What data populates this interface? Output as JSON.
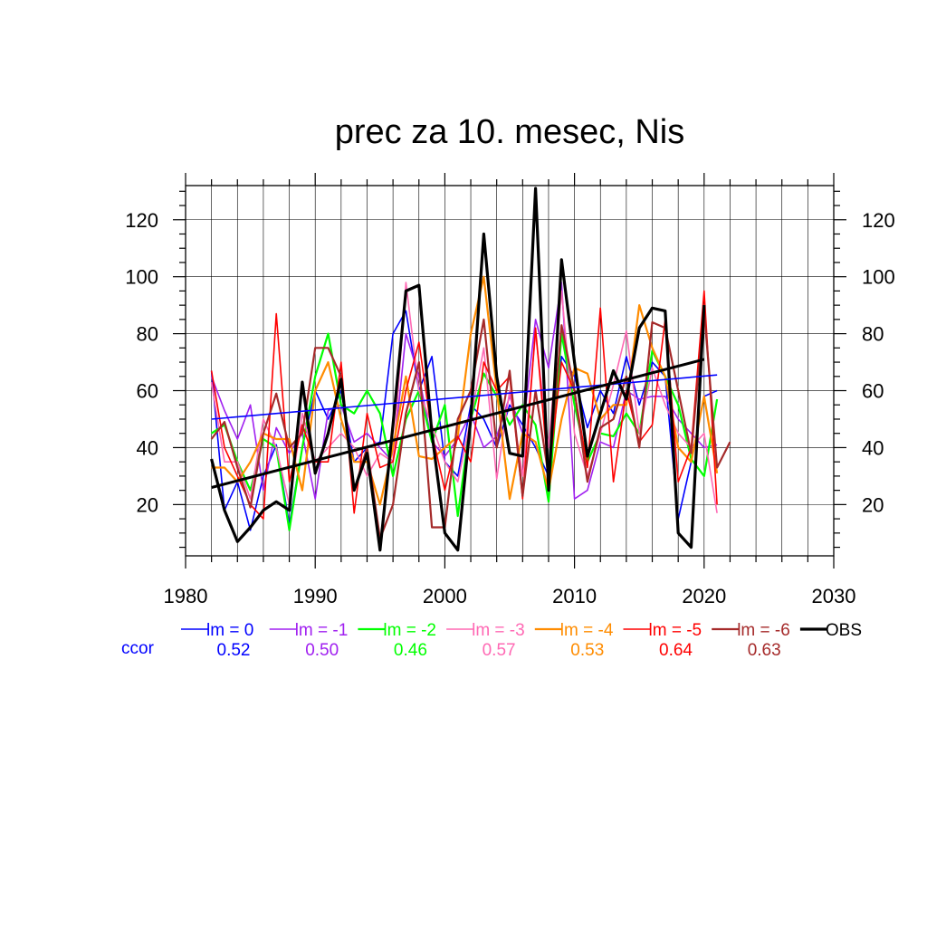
{
  "chart_data": {
    "type": "line",
    "title": "prec za 10. mesec, Nis",
    "xlabel": "",
    "ylabel": "",
    "xlim": [
      1980,
      2030
    ],
    "ylim": [
      2,
      132
    ],
    "x_ticks": [
      1980,
      1990,
      2000,
      2010,
      2020,
      2030
    ],
    "y_ticks": [
      20,
      40,
      60,
      80,
      100,
      120
    ],
    "grid": true,
    "legend_placement": "bottom",
    "ccor_label": "ccor",
    "series": [
      {
        "name": "lm = 0",
        "color": "#0000ff",
        "width": 1.6,
        "ccor": "0.52",
        "x": [
          1982,
          1983,
          1984,
          1985,
          1986,
          1987,
          1988,
          1989,
          1990,
          1991,
          1992,
          1993,
          1994,
          1995,
          1996,
          1997,
          1998,
          1999,
          2000,
          2001,
          2002,
          2003,
          2004,
          2005,
          2006,
          2007,
          2008,
          2009,
          2010,
          2011,
          2012,
          2013,
          2014,
          2015,
          2016,
          2017,
          2018,
          2019,
          2020,
          2021
        ],
        "values": [
          67,
          18,
          28,
          11,
          30,
          41,
          13,
          40,
          60,
          50,
          60,
          35,
          40,
          42,
          80,
          88,
          60,
          72,
          35,
          30,
          55,
          50,
          40,
          55,
          48,
          40,
          30,
          72,
          65,
          47,
          60,
          52,
          72,
          55,
          70,
          65,
          15,
          35,
          58,
          60
        ],
        "trend": [
          50,
          65.5
        ]
      },
      {
        "name": "lm = -1",
        "color": "#a020f0",
        "width": 1.6,
        "ccor": "0.50",
        "x": [
          1982,
          1983,
          1984,
          1985,
          1986,
          1987,
          1988,
          1989,
          1990,
          1991,
          1992,
          1993,
          1994,
          1995,
          1996,
          1997,
          1998,
          1999,
          2000,
          2001,
          2002,
          2003,
          2004,
          2005,
          2006,
          2007,
          2008,
          2009,
          2010,
          2011,
          2012,
          2013,
          2014,
          2015,
          2016,
          2017,
          2018,
          2019,
          2020,
          2021
        ],
        "values": [
          65,
          53,
          43,
          55,
          25,
          47,
          38,
          45,
          22,
          53,
          55,
          42,
          45,
          40,
          35,
          80,
          65,
          42,
          37,
          43,
          52,
          40,
          44,
          58,
          45,
          85,
          68,
          98,
          22,
          25,
          42,
          40,
          60,
          57,
          58,
          58,
          50,
          45,
          40,
          41
        ]
      },
      {
        "name": "lm = -2",
        "color": "#00ff00",
        "width": 2.2,
        "ccor": "0.46",
        "x": [
          1982,
          1983,
          1984,
          1985,
          1986,
          1987,
          1988,
          1989,
          1990,
          1991,
          1992,
          1993,
          1994,
          1995,
          1996,
          1997,
          1998,
          1999,
          2000,
          2001,
          2002,
          2003,
          2004,
          2005,
          2006,
          2007,
          2008,
          2009,
          2010,
          2011,
          2012,
          2013,
          2014,
          2015,
          2016,
          2017,
          2018,
          2019,
          2020,
          2021
        ],
        "values": [
          45,
          48,
          35,
          25,
          43,
          40,
          11,
          40,
          65,
          80,
          55,
          52,
          60,
          52,
          30,
          50,
          60,
          42,
          55,
          16,
          50,
          66,
          58,
          48,
          55,
          48,
          21,
          80,
          55,
          35,
          45,
          44,
          52,
          45,
          74,
          65,
          55,
          36,
          30,
          57
        ]
      },
      {
        "name": "lm = -3",
        "color": "#ff69b4",
        "width": 1.6,
        "ccor": "0.57",
        "x": [
          1982,
          1983,
          1984,
          1985,
          1986,
          1987,
          1988,
          1989,
          1990,
          1991,
          1992,
          1993,
          1994,
          1995,
          1996,
          1997,
          1998,
          1999,
          2000,
          2001,
          2002,
          2003,
          2004,
          2005,
          2006,
          2007,
          2008,
          2009,
          2010,
          2011,
          2012,
          2013,
          2014,
          2015,
          2016,
          2017,
          2018,
          2019,
          2020,
          2021
        ],
        "values": [
          63,
          35,
          35,
          22,
          50,
          40,
          20,
          52,
          35,
          40,
          45,
          40,
          30,
          38,
          35,
          98,
          60,
          48,
          35,
          28,
          50,
          75,
          29,
          60,
          30,
          80,
          40,
          95,
          45,
          30,
          45,
          62,
          81,
          45,
          68,
          55,
          45,
          40,
          45,
          17
        ]
      },
      {
        "name": "lm = -4",
        "color": "#ff8c00",
        "width": 2.2,
        "ccor": "0.53",
        "x": [
          1982,
          1983,
          1984,
          1985,
          1986,
          1987,
          1988,
          1989,
          1990,
          1991,
          1992,
          1993,
          1994,
          1995,
          1996,
          1997,
          1998,
          1999,
          2000,
          2001,
          2002,
          2003,
          2004,
          2005,
          2006,
          2007,
          2008,
          2009,
          2010,
          2011,
          2012,
          2013,
          2014,
          2015,
          2016,
          2017,
          2018,
          2019,
          2020,
          2021
        ],
        "values": [
          33,
          33,
          28,
          35,
          45,
          43,
          43,
          25,
          60,
          70,
          50,
          35,
          35,
          20,
          40,
          65,
          37,
          36,
          40,
          44,
          80,
          100,
          60,
          22,
          45,
          42,
          25,
          50,
          68,
          66,
          50,
          55,
          55,
          90,
          75,
          65,
          40,
          35,
          58,
          31
        ]
      },
      {
        "name": "lm = -5",
        "color": "#ff0000",
        "width": 1.6,
        "ccor": "0.64",
        "x": [
          1982,
          1983,
          1984,
          1985,
          1986,
          1987,
          1988,
          1989,
          1990,
          1991,
          1992,
          1993,
          1994,
          1995,
          1996,
          1997,
          1998,
          1999,
          2000,
          2001,
          2002,
          2003,
          2004,
          2005,
          2006,
          2007,
          2008,
          2009,
          2010,
          2011,
          2012,
          2013,
          2014,
          2015,
          2016,
          2017,
          2018,
          2019,
          2020,
          2021
        ],
        "values": [
          67,
          40,
          30,
          20,
          15,
          87,
          28,
          48,
          35,
          35,
          70,
          17,
          52,
          33,
          35,
          60,
          77,
          45,
          25,
          44,
          35,
          70,
          60,
          65,
          22,
          82,
          30,
          70,
          60,
          33,
          89,
          28,
          60,
          42,
          48,
          85,
          28,
          40,
          95,
          20
        ]
      },
      {
        "name": "lm = -6",
        "color": "#a52a2a",
        "width": 2.2,
        "ccor": "0.63",
        "x": [
          1982,
          1983,
          1984,
          1985,
          1986,
          1987,
          1988,
          1989,
          1990,
          1991,
          1992,
          1993,
          1994,
          1995,
          1996,
          1997,
          1998,
          1999,
          2000,
          2001,
          2002,
          2003,
          2004,
          2005,
          2006,
          2007,
          2008,
          2009,
          2010,
          2011,
          2012,
          2013,
          2014,
          2015,
          2016,
          2017,
          2018,
          2019,
          2020,
          2021,
          2022
        ],
        "values": [
          43,
          49,
          33,
          19,
          45,
          59,
          40,
          45,
          75,
          75,
          65,
          25,
          40,
          8,
          20,
          52,
          70,
          12,
          12,
          50,
          60,
          85,
          40,
          67,
          23,
          60,
          30,
          83,
          60,
          28,
          47,
          50,
          65,
          40,
          84,
          82,
          60,
          38,
          88,
          33,
          42
        ]
      },
      {
        "name": "OBS",
        "color": "#000000",
        "width": 3.2,
        "ccor": "",
        "x": [
          1982,
          1983,
          1984,
          1985,
          1986,
          1987,
          1988,
          1989,
          1990,
          1991,
          1992,
          1993,
          1994,
          1995,
          1996,
          1997,
          1998,
          1999,
          2000,
          2001,
          2002,
          2003,
          2004,
          2005,
          2006,
          2007,
          2008,
          2009,
          2010,
          2011,
          2012,
          2013,
          2014,
          2015,
          2016,
          2017,
          2018,
          2019,
          2020
        ],
        "values": [
          36,
          18,
          7,
          12,
          18,
          21,
          18,
          63,
          31,
          45,
          64,
          25,
          38,
          4,
          48,
          95,
          97,
          45,
          10,
          4,
          50,
          115,
          65,
          38,
          37,
          131,
          25,
          106,
          70,
          37,
          52,
          67,
          57,
          82,
          89,
          88,
          10,
          5,
          90
        ],
        "trend": [
          26,
          71
        ]
      }
    ]
  }
}
